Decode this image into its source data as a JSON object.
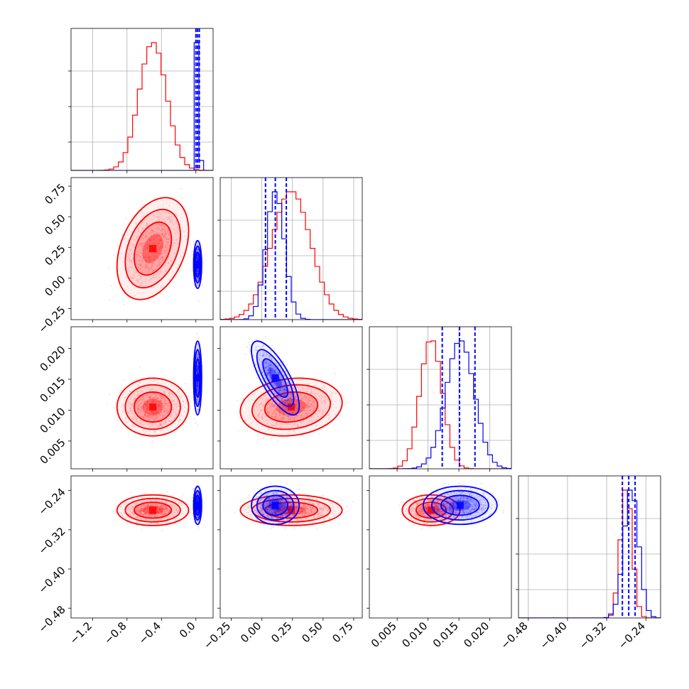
{
  "figure": {
    "type": "corner-plot",
    "grid": true
  },
  "colors": {
    "red": "#ff0000",
    "blue": "#0000ff",
    "grid": "#b0b0b0"
  },
  "chart_data": {
    "type": "corner",
    "title": "",
    "grid": true,
    "parameters": [
      {
        "ticks": [
          "−1.2",
          "−0.8",
          "−0.4",
          "0.0"
        ],
        "tick_values": [
          -1.2,
          -0.8,
          -0.4,
          0.0
        ],
        "range": [
          -1.45,
          0.2
        ]
      },
      {
        "ticks": [
          "−0.25",
          "0.00",
          "0.25",
          "0.50",
          "0.75"
        ],
        "tick_values": [
          -0.25,
          0.0,
          0.25,
          0.5,
          0.75
        ],
        "range": [
          -0.34,
          0.82
        ]
      },
      {
        "ticks": [
          "0.005",
          "0.010",
          "0.015",
          "0.020"
        ],
        "tick_values": [
          0.005,
          0.01,
          0.015,
          0.02
        ],
        "range": [
          0.0005,
          0.0235
        ]
      },
      {
        "ticks": [
          "−0.48",
          "−0.40",
          "−0.32",
          "−0.24"
        ],
        "tick_values": [
          -0.48,
          -0.4,
          -0.32,
          -0.24
        ],
        "range": [
          -0.5,
          -0.21
        ]
      }
    ],
    "series": [
      {
        "color": "#ff0000",
        "mean": [
          -0.5,
          0.24,
          0.0105,
          -0.28
        ],
        "sd": [
          0.16,
          0.16,
          0.0018,
          0.012
        ],
        "corr": [
          [
            0,
            1,
            0.35
          ],
          [
            1,
            2,
            0.15
          ]
        ]
      },
      {
        "color": "#0000ff",
        "mean": [
          0.02,
          0.11,
          0.0152,
          -0.27
        ],
        "sd": [
          0.018,
          0.075,
          0.0023,
          0.015
        ],
        "corr": [
          [
            1,
            2,
            -0.75
          ]
        ],
        "quantiles": [
          [
            0.0,
            0.02,
            0.04
          ],
          [
            0.03,
            0.11,
            0.2
          ],
          [
            0.0123,
            0.0151,
            0.0176
          ],
          [
            -0.288,
            -0.275,
            -0.262
          ]
        ]
      }
    ]
  }
}
